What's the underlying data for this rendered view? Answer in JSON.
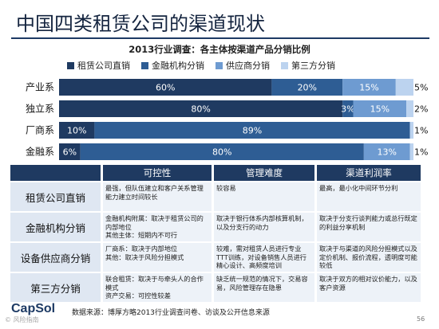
{
  "page": {
    "title": "中国四类租赁公司的渠道现状",
    "source": "数据来源：博厚方略2013行业调查问卷、访谈及公开信息来源",
    "logo": "CapSol",
    "watermark": "© 风险指南",
    "page_number": "56"
  },
  "chart_data": {
    "type": "bar",
    "orientation": "horizontal",
    "stacked": true,
    "title": "2013行业调查：各主体按渠道产品分销比例",
    "categories": [
      "产业系",
      "独立系",
      "厂商系",
      "金融系"
    ],
    "series": [
      {
        "name": "租赁公司直销",
        "color": "#1f3a61",
        "values": [
          60,
          80,
          10,
          6
        ]
      },
      {
        "name": "金融机构分销",
        "color": "#2e5d94",
        "values": [
          20,
          3,
          89,
          80
        ]
      },
      {
        "name": "供应商分销",
        "color": "#6e9bd1",
        "values": [
          15,
          15,
          0,
          13
        ]
      },
      {
        "name": "第三方分销",
        "color": "#bcd3ef",
        "values": [
          5,
          2,
          1,
          1
        ]
      }
    ],
    "xlim": [
      0,
      100
    ],
    "legend": "top"
  },
  "table": {
    "headers": [
      "可控性",
      "管理难度",
      "渠道利润率"
    ],
    "rows": [
      {
        "label": "租赁公司直销",
        "cells": [
          "最强，但队伍建立和客户关系管理能力建立时间较长",
          "较容易",
          "最高，最小化中间环节分利"
        ]
      },
      {
        "label": "金融机构分销",
        "cells": [
          "金融机构附属：取决于租赁公司的内部地位\n其他主体：短期内不可行",
          "取决于银行体系内部核算机制，以及分支行的动力",
          "取决于分支行谈判能力或总行既定的利益分享机制"
        ]
      },
      {
        "label": "设备供应商分销",
        "cells": [
          "厂商系：取决于内部地位\n其他：取决于风险分担模式",
          "较难，需对租赁人员进行专业TTT训练，对设备销售人员进行精心设计、高频度培训",
          "取决于与渠道的风险分担模式以及定价机制、报价流程，透明度可能较低"
        ]
      },
      {
        "label": "第三方分销",
        "cells": [
          "联合租赁：取决于与牵头人的合作模式\n资产交易：可控性较差",
          "缺乏统一规范的情况下，交易容易，风险管理存在隐患",
          "取决于双方的相对议价能力，以及客户资源"
        ]
      }
    ]
  }
}
